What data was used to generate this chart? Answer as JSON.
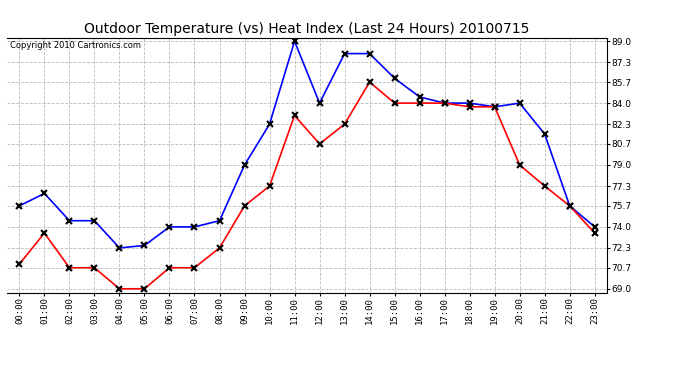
{
  "title": "Outdoor Temperature (vs) Heat Index (Last 24 Hours) 20100715",
  "copyright": "Copyright 2010 Cartronics.com",
  "hours": [
    "00:00",
    "01:00",
    "02:00",
    "03:00",
    "04:00",
    "05:00",
    "06:00",
    "07:00",
    "08:00",
    "09:00",
    "10:00",
    "11:00",
    "12:00",
    "13:00",
    "14:00",
    "15:00",
    "16:00",
    "17:00",
    "18:00",
    "19:00",
    "20:00",
    "21:00",
    "22:00",
    "23:00"
  ],
  "blue_temp": [
    75.7,
    76.7,
    74.5,
    74.5,
    72.3,
    72.5,
    74.0,
    74.0,
    74.5,
    79.0,
    82.3,
    89.0,
    84.0,
    88.0,
    88.0,
    86.0,
    84.5,
    84.0,
    84.0,
    83.7,
    84.0,
    81.5,
    75.7,
    74.0
  ],
  "red_heat": [
    71.0,
    73.5,
    70.7,
    70.7,
    69.0,
    69.0,
    70.7,
    70.7,
    72.3,
    75.7,
    77.3,
    83.0,
    80.7,
    82.3,
    85.7,
    84.0,
    84.0,
    84.0,
    83.7,
    83.7,
    79.0,
    77.3,
    75.7,
    73.5
  ],
  "blue_color": "#0000ff",
  "red_color": "#ff0000",
  "marker": "x",
  "marker_color": "#000000",
  "marker_size": 5,
  "marker_lw": 1.5,
  "ylim": [
    69.0,
    89.0
  ],
  "yticks": [
    69.0,
    70.7,
    72.3,
    74.0,
    75.7,
    77.3,
    79.0,
    80.7,
    82.3,
    84.0,
    85.7,
    87.3,
    89.0
  ],
  "grid_color": "#bbbbbb",
  "grid_style": "--",
  "bg_color": "#ffffff",
  "title_fontsize": 10,
  "copyright_fontsize": 6,
  "tick_fontsize": 6.5,
  "line_width": 1.2
}
